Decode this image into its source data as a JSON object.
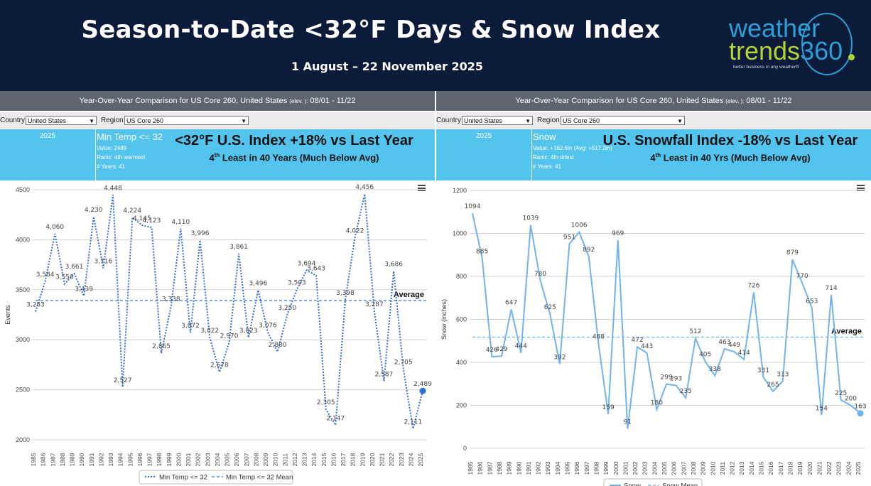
{
  "header": {
    "title": "Season-to-Date <32°F Days & Snow Index",
    "subtitle": "1 August – 22 November 2025",
    "logo": {
      "line1": "weather",
      "line2a": "trends",
      "line2b": "360",
      "tagline": "better business in any weather®"
    }
  },
  "colors": {
    "header_bg": "#0d1b3a",
    "band": "#53c4ee",
    "series_left": "#2f6fd6",
    "series_right": "#6fb4ee"
  },
  "left_panel": {
    "top_title": "Year-Over-Year Comparison for US Core 260, United States",
    "elev_text": "(elev. ):",
    "date_range": "08/01 - 11/22",
    "country_label": "Country:",
    "country_value": "United States",
    "region_label": "Region:",
    "region_value": "US Core 260",
    "band_year": "2025",
    "band_metric": "Min Temp <= 32",
    "band_value": "Value: 2489",
    "band_rank": "Ranic: 4th warmest",
    "band_years": "# Years: 41",
    "headline": "<32°F U.S. Index +18% vs Last Year",
    "sub_rank": "4",
    "sub_sup": "th",
    "sub_rest": " Least in 40 Years (Much Below Avg)"
  },
  "right_panel": {
    "top_title": "Year-Over-Year Comparison for US Core 260, United States",
    "elev_text": "(elev. ):",
    "date_range": "08/01 - 11/22",
    "country_label": "Country:",
    "country_value": "United States",
    "region_label": "Region:",
    "region_value": "US Core 260",
    "band_year": "2025",
    "band_metric": "Snow",
    "band_value": "Value: +162.6in (Avg: +517.3in)",
    "band_rank": "Ranic: 4th driest",
    "band_years": "# Years: 41",
    "headline": "U.S. Snowfall Index -18% vs Last Year",
    "sub_rank": "4",
    "sub_sup": "th",
    "sub_rest": " Least in 40 Yrs (Much Below Avg)"
  },
  "chart_data": [
    {
      "type": "line",
      "title": "",
      "xlabel": "",
      "ylabel": "Events",
      "ylim": [
        2000,
        4500
      ],
      "yticks": [
        2000,
        2500,
        3000,
        3500,
        4000,
        4500
      ],
      "x": [
        1985,
        1986,
        1987,
        1988,
        1989,
        1990,
        1991,
        1992,
        1993,
        1994,
        1995,
        1996,
        1997,
        1998,
        1999,
        2000,
        2001,
        2002,
        2003,
        2004,
        2005,
        2006,
        2007,
        2008,
        2009,
        2010,
        2011,
        2012,
        2013,
        2014,
        2015,
        2016,
        2017,
        2018,
        2019,
        2020,
        2021,
        2022,
        2023,
        2024,
        2025
      ],
      "series": [
        {
          "name": "Min Temp <= 32",
          "style": "dotted",
          "values": [
            3283,
            3584,
            4060,
            3558,
            3661,
            3439,
            4230,
            3716,
            4448,
            2527,
            4224,
            4145,
            4123,
            2865,
            3338,
            4110,
            3072,
            3996,
            3022,
            2678,
            2970,
            3861,
            3023,
            3496,
            3076,
            2880,
            3250,
            3503,
            3694,
            3643,
            2305,
            2147,
            3398,
            4022,
            4456,
            3287,
            2587,
            3686,
            2705,
            2111,
            2489
          ],
          "labels": [
            "3,283",
            "3,584",
            "4,060",
            "3,558",
            "3,661",
            "3,439",
            "4,230",
            "3,716",
            "4,448",
            "2,527",
            "4,224",
            "4,145",
            "4,123",
            "2,865",
            "3,338",
            "4,110",
            "3,072",
            "3,996",
            "3,022",
            "2,678",
            "2,970",
            "3,861",
            "3,023",
            "3,496",
            "3,076",
            "2,880",
            "3,250",
            "3,503",
            "3,694",
            "3,643",
            "2,305",
            "2,147",
            "3,398",
            "4,022",
            "4,456",
            "3,287",
            "2,587",
            "3,686",
            "2,705",
            "2,111",
            "2,489"
          ]
        },
        {
          "name": "Min Temp <= 32 Mean",
          "style": "dashed",
          "value": 3391
        }
      ],
      "annotation": "Average",
      "legend": "bottom"
    },
    {
      "type": "line",
      "title": "",
      "xlabel": "",
      "ylabel": "Snow (inches)",
      "ylim": [
        0,
        1200
      ],
      "yticks": [
        0,
        200,
        400,
        600,
        800,
        1000,
        1200
      ],
      "x": [
        1985,
        1986,
        1987,
        1988,
        1989,
        1990,
        1991,
        1992,
        1993,
        1994,
        1995,
        1996,
        1997,
        1998,
        1999,
        2000,
        2001,
        2002,
        2003,
        2004,
        2005,
        2006,
        2007,
        2008,
        2009,
        2010,
        2011,
        2012,
        2013,
        2014,
        2015,
        2016,
        2017,
        2018,
        2019,
        2020,
        2021,
        2022,
        2023,
        2024,
        2025
      ],
      "series": [
        {
          "name": "Snow",
          "style": "solid",
          "values": [
            1094,
            885,
            426,
            429,
            647,
            444,
            1039,
            780,
            625,
            392,
            951,
            1006,
            892,
            488,
            159,
            969,
            91,
            472,
            443,
            180,
            299,
            293,
            235,
            512,
            405,
            338,
            463,
            449,
            414,
            726,
            331,
            265,
            313,
            879,
            770,
            653,
            154,
            714,
            225,
            200,
            163
          ],
          "labels": [
            "1094",
            "885",
            "426",
            "429",
            "647",
            "444",
            "1039",
            "780",
            "625",
            "392",
            "951",
            "1006",
            "892",
            "488",
            "159",
            "969",
            "91",
            "472",
            "443",
            "180",
            "299",
            "293",
            "235",
            "512",
            "405",
            "338",
            "463",
            "449",
            "414",
            "726",
            "331",
            "265",
            "313",
            "879",
            "770",
            "653",
            "154",
            "714",
            "225",
            "200",
            "163"
          ]
        },
        {
          "name": "Snow Mean",
          "style": "dashed",
          "value": 517.3
        }
      ],
      "annotation": "Average",
      "legend": "bottom"
    }
  ]
}
